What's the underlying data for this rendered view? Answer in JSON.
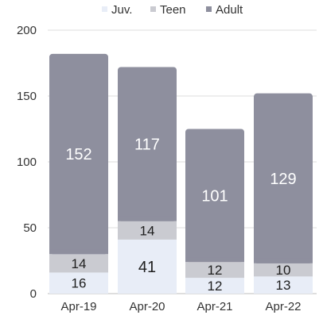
{
  "chart_data": {
    "type": "bar",
    "stacked": true,
    "categories": [
      "Apr-19",
      "Apr-20",
      "Apr-21",
      "Apr-22"
    ],
    "series": [
      {
        "name": "Juv.",
        "values": [
          16,
          41,
          12,
          13
        ],
        "color": "#e8edf7"
      },
      {
        "name": "Teen",
        "values": [
          14,
          14,
          12,
          10
        ],
        "color": "#cacbd1"
      },
      {
        "name": "Adult",
        "values": [
          152,
          117,
          101,
          129
        ],
        "color": "#8e8f9e"
      }
    ],
    "title": "",
    "xlabel": "",
    "ylabel": "",
    "ylim": [
      0,
      200
    ],
    "yticks": [
      "0",
      "50",
      "100",
      "150",
      "200"
    ],
    "grid": true,
    "legend_position": "top-center"
  }
}
